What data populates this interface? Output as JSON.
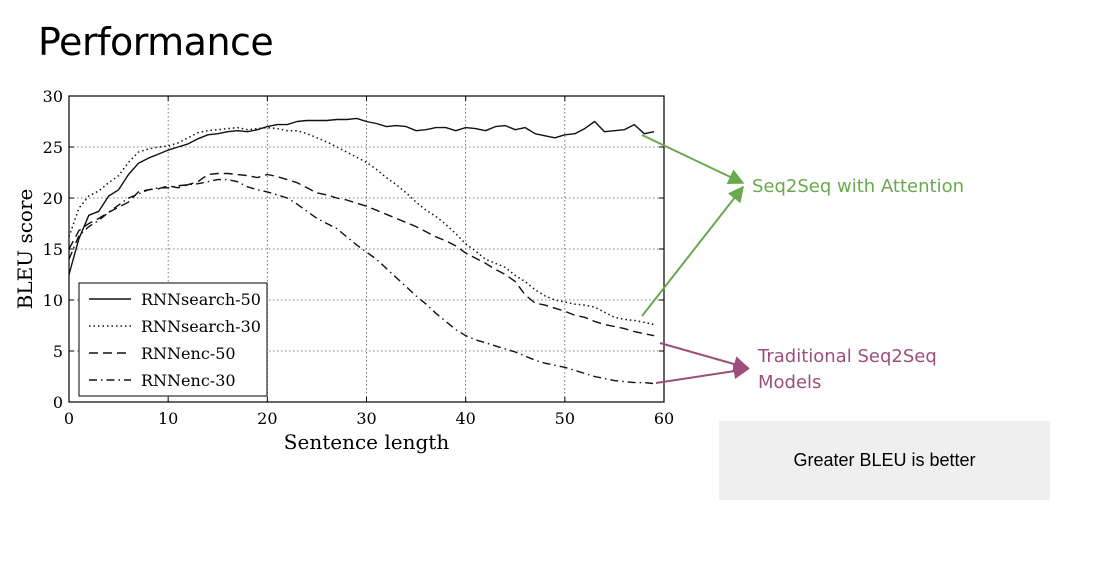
{
  "slide": {
    "title": "Performance",
    "note": "Greater BLEU is better"
  },
  "callouts": {
    "attention": "Seq2Seq with Attention",
    "traditional_line1": "Traditional Seq2Seq",
    "traditional_line2": "Models",
    "attention_color": "#6aa84f",
    "traditional_color": "#9c4f7d"
  },
  "chart_data": {
    "type": "line",
    "title": "",
    "xlabel": "Sentence length",
    "ylabel": "BLEU score",
    "xlim": [
      0,
      60
    ],
    "ylim": [
      0,
      30
    ],
    "xticks": [
      0,
      10,
      20,
      30,
      40,
      50,
      60
    ],
    "yticks": [
      0,
      5,
      10,
      15,
      20,
      25,
      30
    ],
    "grid": true,
    "legend_position": "bottom-left",
    "series": [
      {
        "name": "RNNsearch-50",
        "style": "solid",
        "x": [
          0,
          1,
          2,
          3,
          4,
          5,
          6,
          7,
          8,
          9,
          10,
          11,
          12,
          13,
          14,
          15,
          16,
          17,
          18,
          19,
          20,
          21,
          22,
          23,
          24,
          25,
          26,
          27,
          28,
          29,
          30,
          31,
          32,
          33,
          34,
          35,
          36,
          37,
          38,
          39,
          40,
          41,
          42,
          43,
          44,
          45,
          46,
          47,
          48,
          49,
          50,
          51,
          52,
          53,
          54,
          55,
          56,
          57,
          58,
          59
        ],
        "y": [
          12.5,
          16.0,
          18.3,
          18.7,
          20.2,
          20.8,
          22.3,
          23.4,
          23.9,
          24.3,
          24.7,
          25.0,
          25.3,
          25.8,
          26.2,
          26.3,
          26.5,
          26.6,
          26.5,
          26.7,
          27.0,
          27.2,
          27.2,
          27.5,
          27.6,
          27.6,
          27.6,
          27.7,
          27.7,
          27.8,
          27.5,
          27.3,
          27.0,
          27.1,
          27.0,
          26.6,
          26.7,
          26.9,
          26.9,
          26.6,
          26.9,
          26.8,
          26.6,
          27.0,
          27.1,
          26.7,
          26.9,
          26.3,
          26.1,
          25.9,
          26.2,
          26.3,
          26.8,
          27.5,
          26.5,
          26.6,
          26.7,
          27.2,
          26.3,
          26.5
        ]
      },
      {
        "name": "RNNsearch-30",
        "style": "dotted",
        "x": [
          0,
          1,
          2,
          3,
          4,
          5,
          6,
          7,
          8,
          9,
          10,
          11,
          12,
          13,
          14,
          15,
          16,
          17,
          18,
          19,
          20,
          21,
          22,
          23,
          24,
          25,
          26,
          27,
          28,
          29,
          30,
          31,
          32,
          33,
          34,
          35,
          36,
          37,
          38,
          39,
          40,
          41,
          42,
          43,
          44,
          45,
          46,
          47,
          48,
          49,
          50,
          51,
          52,
          53,
          54,
          55,
          56,
          57,
          58,
          59
        ],
        "y": [
          16.2,
          19.0,
          20.2,
          20.7,
          21.5,
          22.2,
          23.5,
          24.5,
          24.8,
          25.0,
          25.1,
          25.4,
          25.9,
          26.4,
          26.6,
          26.7,
          26.8,
          26.9,
          26.7,
          26.8,
          26.9,
          26.8,
          26.6,
          26.6,
          26.3,
          25.9,
          25.5,
          25.0,
          24.5,
          24.0,
          23.5,
          22.8,
          22.0,
          21.3,
          20.5,
          19.6,
          18.8,
          18.2,
          17.4,
          16.5,
          15.5,
          14.8,
          14.0,
          13.6,
          13.2,
          12.4,
          11.8,
          11.0,
          10.4,
          10.0,
          9.8,
          9.6,
          9.5,
          9.3,
          8.8,
          8.3,
          8.1,
          8.0,
          7.8,
          7.6
        ]
      },
      {
        "name": "RNNenc-50",
        "style": "dashed",
        "x": [
          0,
          1,
          2,
          3,
          4,
          5,
          6,
          7,
          8,
          9,
          10,
          11,
          12,
          13,
          14,
          15,
          16,
          17,
          18,
          19,
          20,
          21,
          22,
          23,
          24,
          25,
          26,
          27,
          28,
          29,
          30,
          31,
          32,
          33,
          34,
          35,
          36,
          37,
          38,
          39,
          40,
          41,
          42,
          43,
          44,
          45,
          46,
          47,
          48,
          49,
          50,
          51,
          52,
          53,
          54,
          55,
          56,
          57,
          58,
          59
        ],
        "y": [
          15.0,
          16.8,
          17.5,
          18.0,
          18.6,
          19.1,
          19.6,
          20.6,
          20.8,
          20.9,
          21.2,
          21.0,
          21.3,
          21.6,
          22.3,
          22.4,
          22.4,
          22.3,
          22.2,
          22.0,
          22.3,
          22.1,
          21.8,
          21.5,
          21.0,
          20.5,
          20.3,
          20.0,
          19.8,
          19.5,
          19.2,
          18.8,
          18.4,
          18.0,
          17.6,
          17.2,
          16.7,
          16.2,
          15.8,
          15.3,
          14.6,
          14.1,
          13.6,
          13.0,
          12.5,
          11.8,
          10.5,
          9.7,
          9.5,
          9.2,
          8.9,
          8.5,
          8.3,
          7.9,
          7.6,
          7.4,
          7.2,
          6.9,
          6.7,
          6.5
        ]
      },
      {
        "name": "RNNenc-30",
        "style": "dashdot",
        "x": [
          0,
          1,
          2,
          3,
          4,
          5,
          6,
          7,
          8,
          9,
          10,
          11,
          12,
          13,
          14,
          15,
          16,
          17,
          18,
          19,
          20,
          21,
          22,
          23,
          24,
          25,
          26,
          27,
          28,
          29,
          30,
          31,
          32,
          33,
          34,
          35,
          36,
          37,
          38,
          39,
          40,
          41,
          42,
          43,
          44,
          45,
          46,
          47,
          48,
          49,
          50,
          51,
          52,
          53,
          54,
          55,
          56,
          57,
          58,
          59
        ],
        "y": [
          14.0,
          16.3,
          17.2,
          17.8,
          18.6,
          19.3,
          20.0,
          20.4,
          20.8,
          21.0,
          21.0,
          21.2,
          21.3,
          21.4,
          21.6,
          21.8,
          21.8,
          21.6,
          21.1,
          20.8,
          20.6,
          20.3,
          20.0,
          19.4,
          18.7,
          18.0,
          17.5,
          17.0,
          16.2,
          15.4,
          14.7,
          14.0,
          13.1,
          12.2,
          11.3,
          10.4,
          9.6,
          8.7,
          7.9,
          7.1,
          6.5,
          6.1,
          5.8,
          5.5,
          5.2,
          4.9,
          4.5,
          4.1,
          3.8,
          3.6,
          3.4,
          3.1,
          2.8,
          2.5,
          2.3,
          2.1,
          2.0,
          1.9,
          1.9,
          1.8
        ]
      }
    ]
  }
}
